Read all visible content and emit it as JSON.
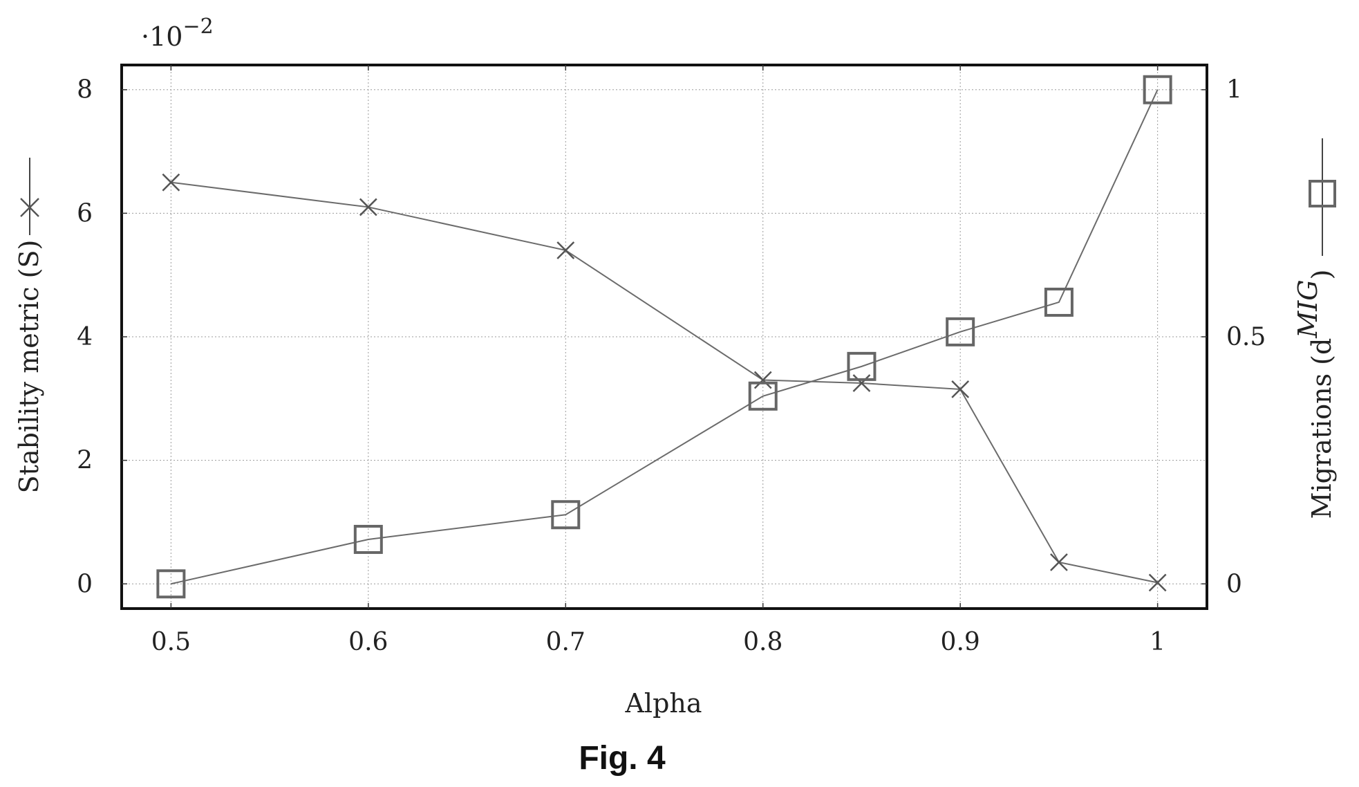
{
  "figure_caption": "Fig. 4",
  "chart_data": {
    "type": "line",
    "xlabel": "Alpha",
    "ylabel_left": "Stability metric (S)",
    "ylabel_right": "Migrations (d",
    "ylabel_right_sup": "MIG",
    "ylabel_right_close": ")",
    "left_axis_multiplier_base": "·10",
    "left_axis_multiplier_exp": "−2",
    "x_ticks": [
      "0.5",
      "0.6",
      "0.7",
      "0.8",
      "0.9",
      "1"
    ],
    "x_tick_values": [
      0.5,
      0.6,
      0.7,
      0.8,
      0.9,
      1.0
    ],
    "y_left_ticks": [
      "0",
      "2",
      "4",
      "6",
      "8"
    ],
    "y_left_tick_values": [
      0,
      2,
      4,
      6,
      8
    ],
    "y_right_ticks": [
      "0",
      "0.5",
      "1"
    ],
    "y_right_tick_values": [
      0,
      0.5,
      1
    ],
    "xlim": [
      0.475,
      1.025
    ],
    "ylim_left": [
      -0.4,
      8.4
    ],
    "ylim_right": [
      -0.05,
      1.05
    ],
    "grid": true,
    "series": [
      {
        "marker": "cross",
        "axis": "left",
        "x": [
          0.5,
          0.6,
          0.7,
          0.8,
          0.85,
          0.9,
          0.95,
          1.0
        ],
        "y": [
          6.5,
          6.1,
          5.4,
          3.3,
          3.25,
          3.15,
          0.35,
          0.02
        ],
        "color": "#555555"
      },
      {
        "marker": "square",
        "axis": "right",
        "x": [
          0.5,
          0.6,
          0.7,
          0.8,
          0.85,
          0.9,
          0.95,
          1.0
        ],
        "y": [
          0.0,
          0.09,
          0.14,
          0.38,
          0.44,
          0.51,
          0.57,
          1.0
        ],
        "color": "#666666"
      }
    ]
  }
}
